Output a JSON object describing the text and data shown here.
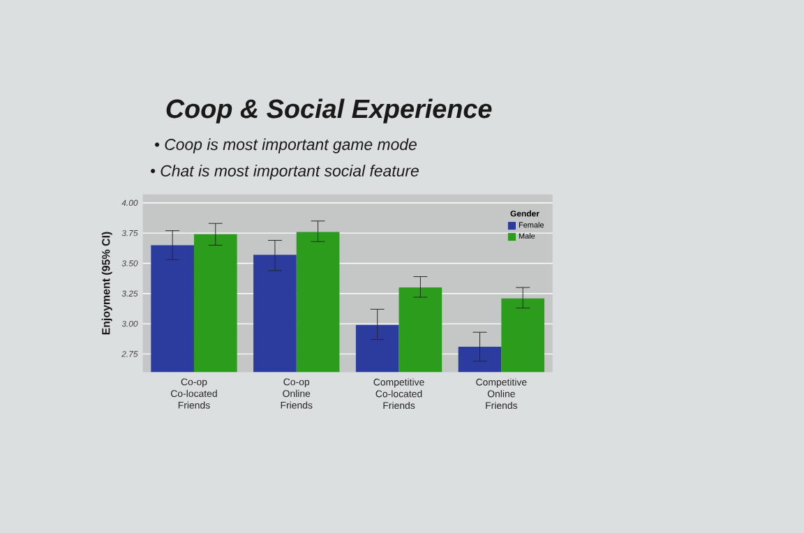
{
  "chart_data": {
    "type": "bar",
    "title": "Coop & Social Experience",
    "annotations": [
      "• Coop is most important game mode",
      "• Chat is most important social feature"
    ],
    "ylabel": "Enjoyment (95% CI)",
    "categories": [
      "Co-op Co-located Friends",
      "Co-op Online Friends",
      "Competitive Co-located Friends",
      "Competitive Online Friends"
    ],
    "series": [
      {
        "name": "Female",
        "color": "#2c3b9e",
        "values": [
          3.65,
          3.57,
          2.99,
          2.81
        ],
        "errors": [
          [
            3.53,
            3.77
          ],
          [
            3.44,
            3.69
          ],
          [
            2.87,
            3.12
          ],
          [
            2.69,
            2.93
          ]
        ]
      },
      {
        "name": "Male",
        "color": "#2b9c1c",
        "values": [
          3.74,
          3.76,
          3.3,
          3.21
        ],
        "errors": [
          [
            3.65,
            3.83
          ],
          [
            3.68,
            3.85
          ],
          [
            3.22,
            3.39
          ],
          [
            3.13,
            3.3
          ]
        ]
      }
    ],
    "legend_title": "Gender",
    "legend": "top right",
    "ylim": [
      2.6,
      4.07
    ],
    "yticks": [
      2.75,
      {
        "value": 3,
        "label": "3.00"
      },
      3.25,
      {
        "value": 3.5,
        "label": "3.50"
      },
      3.75,
      {
        "value": 4,
        "label": "4.00"
      }
    ],
    "grid": "y"
  }
}
